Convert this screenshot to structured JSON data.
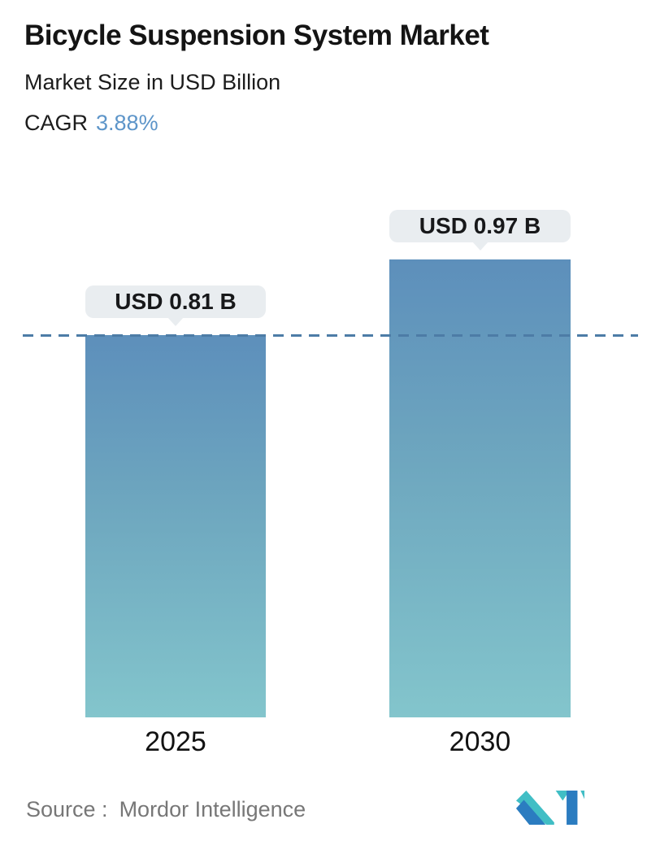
{
  "header": {
    "title": "Bicycle Suspension System Market",
    "subtitle": "Market Size in USD Billion",
    "cagr_label": "CAGR",
    "cagr_value": "3.88%"
  },
  "chart_data": {
    "type": "bar",
    "categories": [
      "2025",
      "2030"
    ],
    "values": [
      0.81,
      0.97
    ],
    "value_labels": [
      "USD 0.81 B",
      "USD 0.97 B"
    ],
    "title": "Bicycle Suspension System Market",
    "ylabel": "Market Size in USD Billion",
    "cagr": "3.88%",
    "ylim": [
      0,
      1.0
    ],
    "grid": false,
    "legend": "none",
    "dashed_reference_value": 0.81,
    "bar_gradient_top": "#5d8fbb",
    "bar_gradient_bottom": "#83c5cc",
    "dashed_line_color": "#4d7ca6",
    "tooltip_bg": "#e9edf0",
    "cagr_accent_color": "#5d95c9"
  },
  "footer": {
    "source_label": "Source :",
    "source_value": "Mordor Intelligence",
    "logo_name": "mordor-intelligence-logo",
    "logo_teal": "#41bec5",
    "logo_blue": "#2b7cc0"
  }
}
